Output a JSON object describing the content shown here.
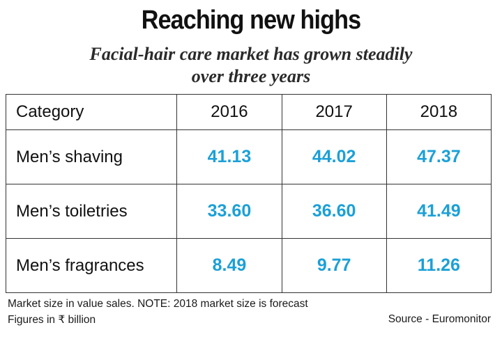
{
  "title": "Reaching new highs",
  "subtitle_line1": "Facial-hair care market has grown steadily",
  "subtitle_line2": "over three years",
  "footer": {
    "note": "Market size in value sales. NOTE: 2018 market size is forecast",
    "units": "Figures in ₹ billion",
    "source": "Source - Euromonitor"
  },
  "colors": {
    "value_text": "#1ba0d7",
    "border": "#333333"
  },
  "chart_data": {
    "type": "table",
    "title": "Reaching new highs",
    "subtitle": "Facial-hair care market has grown steadily over three years",
    "columns": [
      "Category",
      "2016",
      "2017",
      "2018"
    ],
    "rows": [
      {
        "label": "Men’s shaving",
        "values": [
          "41.13",
          "44.02",
          "47.37"
        ]
      },
      {
        "label": "Men’s toiletries",
        "values": [
          "33.60",
          "36.60",
          "41.49"
        ]
      },
      {
        "label": "Men’s fragrances",
        "values": [
          "8.49",
          "9.77",
          "11.26"
        ]
      }
    ]
  }
}
